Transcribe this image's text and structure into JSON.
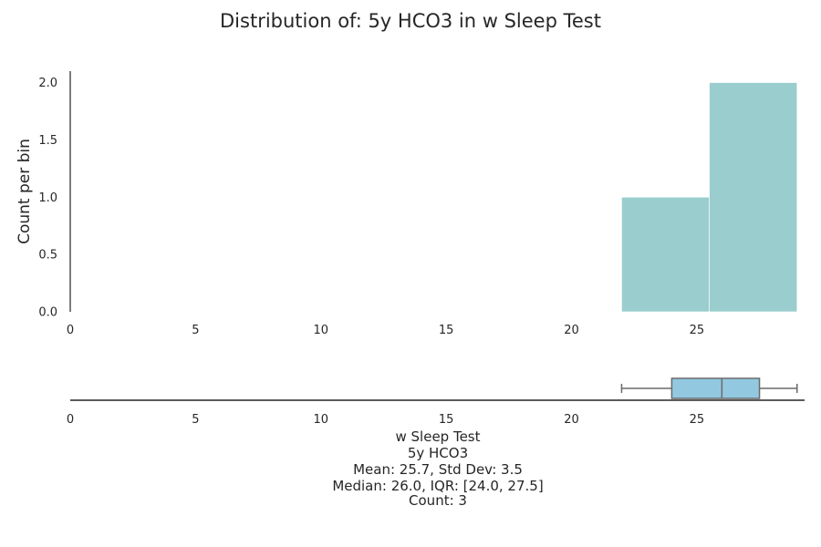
{
  "chart_data": [
    {
      "type": "histogram",
      "title": "Distribution of: 5y HCO3 in w Sleep Test",
      "ylabel": "Count per bin",
      "xlim": [
        0,
        29.3
      ],
      "ylim": [
        0,
        2.1
      ],
      "x_ticks": [
        "0",
        "5",
        "10",
        "15",
        "20",
        "25"
      ],
      "x_tick_values": [
        0,
        5,
        10,
        15,
        20,
        25
      ],
      "y_ticks": [
        "0.0",
        "0.5",
        "1.0",
        "1.5",
        "2.0"
      ],
      "y_tick_values": [
        0,
        0.5,
        1,
        1.5,
        2
      ],
      "bins": [
        {
          "start": 22.0,
          "end": 25.5,
          "count": 1
        },
        {
          "start": 25.5,
          "end": 29.0,
          "count": 2
        }
      ],
      "bar_color": "#9ACDCE",
      "grid": false
    },
    {
      "type": "boxplot",
      "xlim": [
        0,
        29.3
      ],
      "x_ticks": [
        "0",
        "5",
        "10",
        "15",
        "20",
        "25"
      ],
      "x_tick_values": [
        0,
        5,
        10,
        15,
        20,
        25
      ],
      "whisker_low": 22.0,
      "q1": 24.0,
      "median": 26.0,
      "q3": 27.5,
      "whisker_high": 29.0,
      "box_color": "#92C9E1"
    }
  ],
  "caption": {
    "line1": "w Sleep Test",
    "line2": "5y HCO3",
    "line3": "Mean: 25.7, Std Dev: 3.5",
    "line4": "Median: 26.0, IQR: [24.0, 27.5]",
    "line5": "Count: 3"
  }
}
